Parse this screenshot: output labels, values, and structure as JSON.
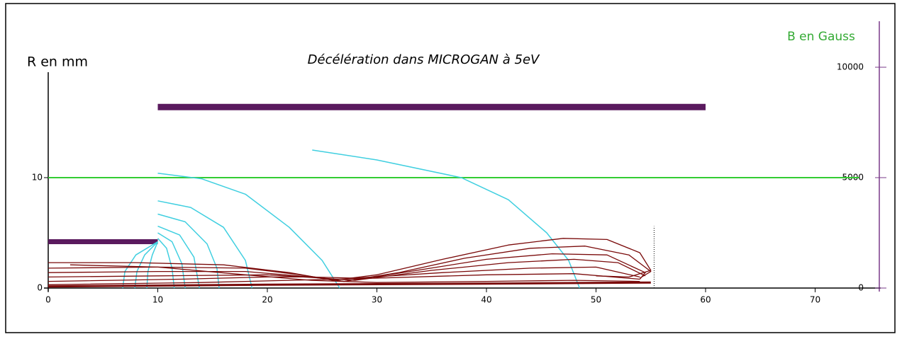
{
  "chart_data": {
    "type": "line",
    "title": "Décélération dans MICROGAN à 5eV",
    "y_label": "R en mm",
    "y2_label": "B en Gauss",
    "xlim": [
      0,
      76
    ],
    "xticks": [
      0,
      10,
      20,
      30,
      40,
      50,
      60,
      70
    ],
    "ylim": [
      0,
      20
    ],
    "yticks": [
      0,
      10
    ],
    "y2lim": [
      0,
      10000
    ],
    "y2ticks": [
      0,
      5000,
      10000
    ],
    "series": [
      {
        "color": "#5a1a5e",
        "line_width": 7,
        "x": [
          0,
          10
        ],
        "values": [
          4.2,
          4.2
        ]
      },
      {
        "color": "#5a1a5e",
        "line_width": 9,
        "x": [
          10,
          60
        ],
        "values": [
          16.4,
          16.4
        ]
      },
      {
        "color": "#33cc33",
        "line_width": 2,
        "axis": "y2",
        "x": [
          0,
          74
        ],
        "values": [
          5000,
          5000
        ]
      },
      {
        "color": "#40cfe0",
        "line_width": 1.5,
        "x": [
          10,
          14,
          18,
          22,
          25,
          26.6
        ],
        "values": [
          10.4,
          9.9,
          8.5,
          5.5,
          2.5,
          0
        ]
      },
      {
        "color": "#40cfe0",
        "line_width": 1.5,
        "x": [
          10,
          13,
          16,
          18,
          18.6
        ],
        "values": [
          7.9,
          7.3,
          5.5,
          2.5,
          0
        ]
      },
      {
        "color": "#40cfe0",
        "line_width": 1.5,
        "x": [
          10,
          12.5,
          14.5,
          15.4,
          15.6
        ],
        "values": [
          6.7,
          6,
          4,
          1.8,
          0
        ]
      },
      {
        "color": "#40cfe0",
        "line_width": 1.5,
        "x": [
          10,
          12,
          13.3,
          13.8
        ],
        "values": [
          5.6,
          4.8,
          2.8,
          0
        ]
      },
      {
        "color": "#40cfe0",
        "line_width": 1.5,
        "x": [
          10,
          11.3,
          12.2,
          12.5
        ],
        "values": [
          5,
          4.2,
          2.2,
          0
        ]
      },
      {
        "color": "#40cfe0",
        "line_width": 1.5,
        "x": [
          10,
          10.8,
          11.3,
          11.5
        ],
        "values": [
          4.5,
          3.6,
          1.8,
          0
        ]
      },
      {
        "color": "#40cfe0",
        "line_width": 1.5,
        "x": [
          10,
          9.5,
          9.1,
          9
        ],
        "values": [
          4.2,
          3,
          1.5,
          0
        ]
      },
      {
        "color": "#40cfe0",
        "line_width": 1.5,
        "x": [
          10,
          8.8,
          8.1,
          7.9
        ],
        "values": [
          4.2,
          3,
          1.5,
          0
        ]
      },
      {
        "color": "#40cfe0",
        "line_width": 1.5,
        "x": [
          10,
          8,
          7,
          6.8
        ],
        "values": [
          4.2,
          3,
          1.5,
          0
        ]
      },
      {
        "color": "#40cfe0",
        "line_width": 1.5,
        "x": [
          24.1,
          30,
          37.7,
          42,
          45.5,
          47.5,
          48.5
        ],
        "values": [
          12.5,
          11.6,
          10,
          8,
          5,
          2.5,
          0
        ]
      },
      {
        "color": "#7a0a0a",
        "line_width": 1.3,
        "x": [
          0,
          8,
          16,
          22,
          26,
          30,
          36,
          42,
          47,
          51,
          54,
          55,
          53,
          50
        ],
        "values": [
          2.3,
          2.3,
          2.1,
          1.4,
          0.7,
          1.2,
          2.6,
          3.9,
          4.5,
          4.4,
          3.2,
          1.6,
          1,
          1.1
        ]
      },
      {
        "color": "#7a0a0a",
        "line_width": 1.3,
        "x": [
          0,
          10,
          18,
          23,
          27,
          32,
          38,
          44,
          49,
          53,
          55,
          54
        ],
        "values": [
          1.8,
          1.9,
          1.8,
          1.2,
          0.6,
          1.4,
          2.7,
          3.6,
          3.8,
          3,
          1.5,
          0.9
        ]
      },
      {
        "color": "#7a0a0a",
        "line_width": 1.3,
        "x": [
          0,
          10,
          18,
          24,
          27,
          33,
          40,
          46,
          51,
          54.5,
          54
        ],
        "values": [
          1.4,
          1.5,
          1.5,
          1,
          0.6,
          1.5,
          2.6,
          3.1,
          3,
          1.4,
          0.8
        ]
      },
      {
        "color": "#7a0a0a",
        "line_width": 1.3,
        "x": [
          0,
          10,
          20,
          25,
          28,
          35,
          42,
          48,
          52,
          54.5
        ],
        "values": [
          1,
          1.1,
          1.2,
          0.9,
          0.7,
          1.6,
          2.3,
          2.6,
          2.3,
          1.1
        ]
      },
      {
        "color": "#7a0a0a",
        "line_width": 1.3,
        "x": [
          0,
          12,
          20,
          24,
          28,
          36,
          44,
          50,
          54
        ],
        "values": [
          0.6,
          0.8,
          1,
          1,
          0.9,
          1.4,
          1.8,
          1.9,
          1
        ]
      },
      {
        "color": "#7a0a0a",
        "line_width": 1.3,
        "x": [
          0,
          14,
          22,
          30,
          40,
          48,
          54
        ],
        "values": [
          0.3,
          0.5,
          0.7,
          0.9,
          1.2,
          1.3,
          0.8
        ]
      },
      {
        "color": "#7a0a0a",
        "line_width": 1.3,
        "x": [
          2,
          10,
          18,
          24,
          30,
          40,
          48,
          54
        ],
        "values": [
          2.1,
          1.9,
          1.2,
          0.7,
          0.5,
          0.6,
          0.7,
          0.6
        ]
      },
      {
        "color": "#7a0a0a",
        "line_width": 3,
        "x": [
          0,
          20,
          40,
          55
        ],
        "values": [
          0.15,
          0.3,
          0.4,
          0.5
        ]
      },
      {
        "color": "#000000",
        "line_width": 1,
        "dashed": true,
        "x": [
          55.3,
          55.3
        ],
        "values": [
          0,
          5.6
        ]
      }
    ]
  }
}
